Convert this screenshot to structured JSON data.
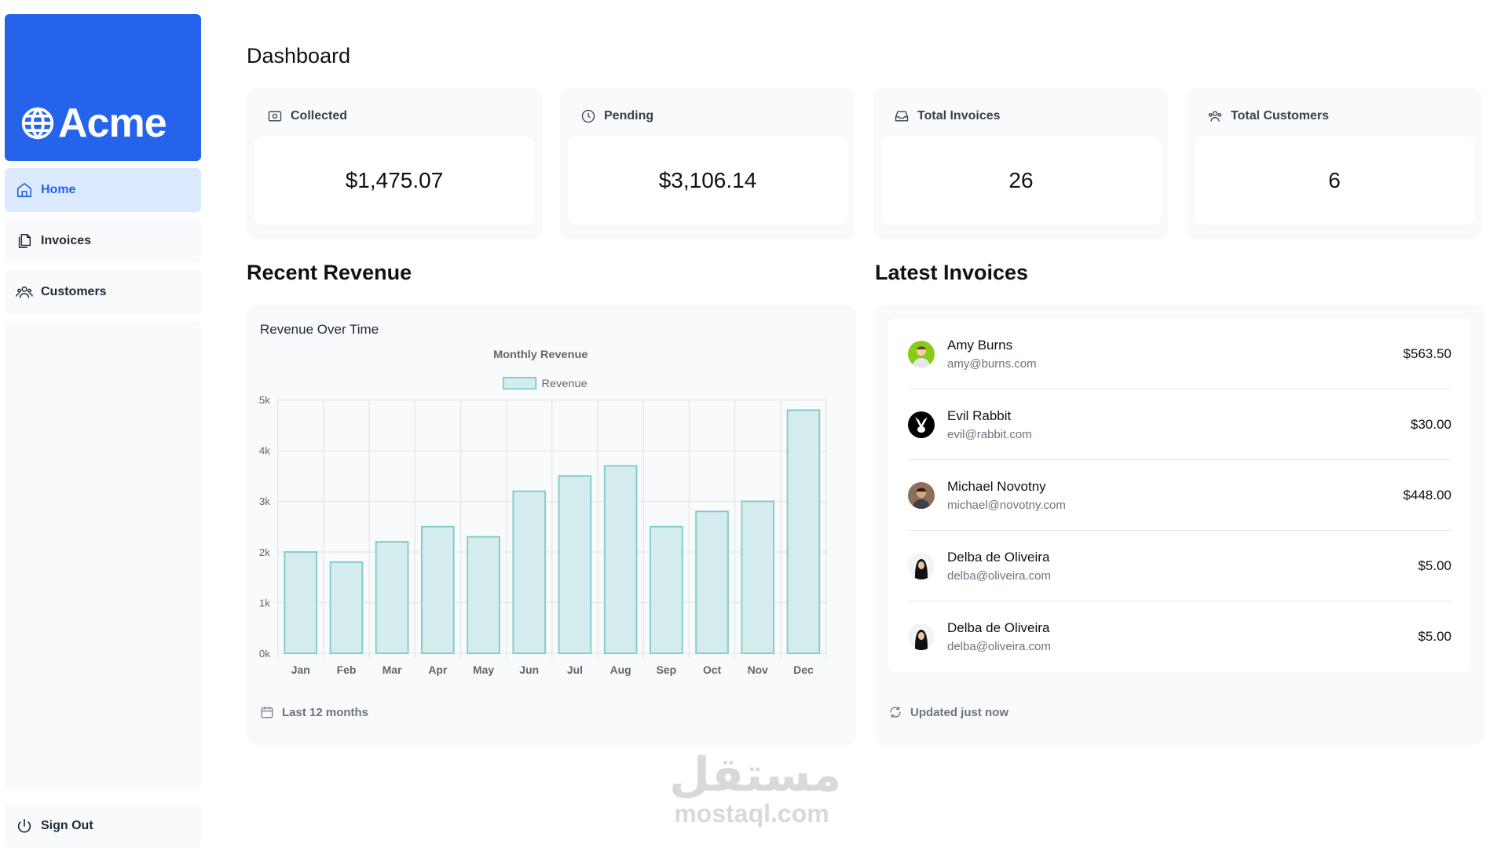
{
  "brand": {
    "name": "Acme",
    "color": "#2563eb"
  },
  "sidebar": {
    "items": [
      {
        "label": "Home",
        "icon": "home-icon",
        "active": true
      },
      {
        "label": "Invoices",
        "icon": "document-icon",
        "active": false
      },
      {
        "label": "Customers",
        "icon": "users-icon",
        "active": false
      }
    ],
    "sign_out": {
      "label": "Sign Out",
      "icon": "power-icon"
    }
  },
  "page": {
    "title": "Dashboard"
  },
  "cards": [
    {
      "label": "Collected",
      "value": "$1,475.07",
      "icon": "banknote-icon"
    },
    {
      "label": "Pending",
      "value": "$3,106.14",
      "icon": "clock-icon"
    },
    {
      "label": "Total Invoices",
      "value": "26",
      "icon": "inbox-icon"
    },
    {
      "label": "Total Customers",
      "value": "6",
      "icon": "users-icon"
    }
  ],
  "revenue": {
    "section_title": "Recent Revenue",
    "panel_title": "Revenue Over Time",
    "footer": "Last 12 months",
    "footer_icon": "calendar-icon"
  },
  "chart_data": {
    "type": "bar",
    "title": "Monthly Revenue",
    "categories": [
      "Jan",
      "Feb",
      "Mar",
      "Apr",
      "May",
      "Jun",
      "Jul",
      "Aug",
      "Sep",
      "Oct",
      "Nov",
      "Dec"
    ],
    "series": [
      {
        "name": "Revenue",
        "values": [
          2000,
          1800,
          2200,
          2500,
          2300,
          3200,
          3500,
          3700,
          2500,
          2800,
          3000,
          4800
        ]
      }
    ],
    "y_ticks": [
      "0k",
      "1k",
      "2k",
      "3k",
      "4k",
      "5k"
    ],
    "ylim": [
      0,
      5000
    ],
    "grid": true,
    "legend": "top-center",
    "bar_fill": "#d5ecee",
    "bar_stroke": "#7ccbc8"
  },
  "latest_invoices": {
    "section_title": "Latest Invoices",
    "footer": "Updated just now",
    "footer_icon": "refresh-icon",
    "rows": [
      {
        "name": "Amy Burns",
        "email": "amy@burns.com",
        "amount": "$563.50"
      },
      {
        "name": "Evil Rabbit",
        "email": "evil@rabbit.com",
        "amount": "$30.00"
      },
      {
        "name": "Michael Novotny",
        "email": "michael@novotny.com",
        "amount": "$448.00"
      },
      {
        "name": "Delba de Oliveira",
        "email": "delba@oliveira.com",
        "amount": "$5.00"
      },
      {
        "name": "Delba de Oliveira",
        "email": "delba@oliveira.com",
        "amount": "$5.00"
      }
    ]
  },
  "watermark": {
    "arabic": "مستقل",
    "latin": "mostaql.com"
  }
}
